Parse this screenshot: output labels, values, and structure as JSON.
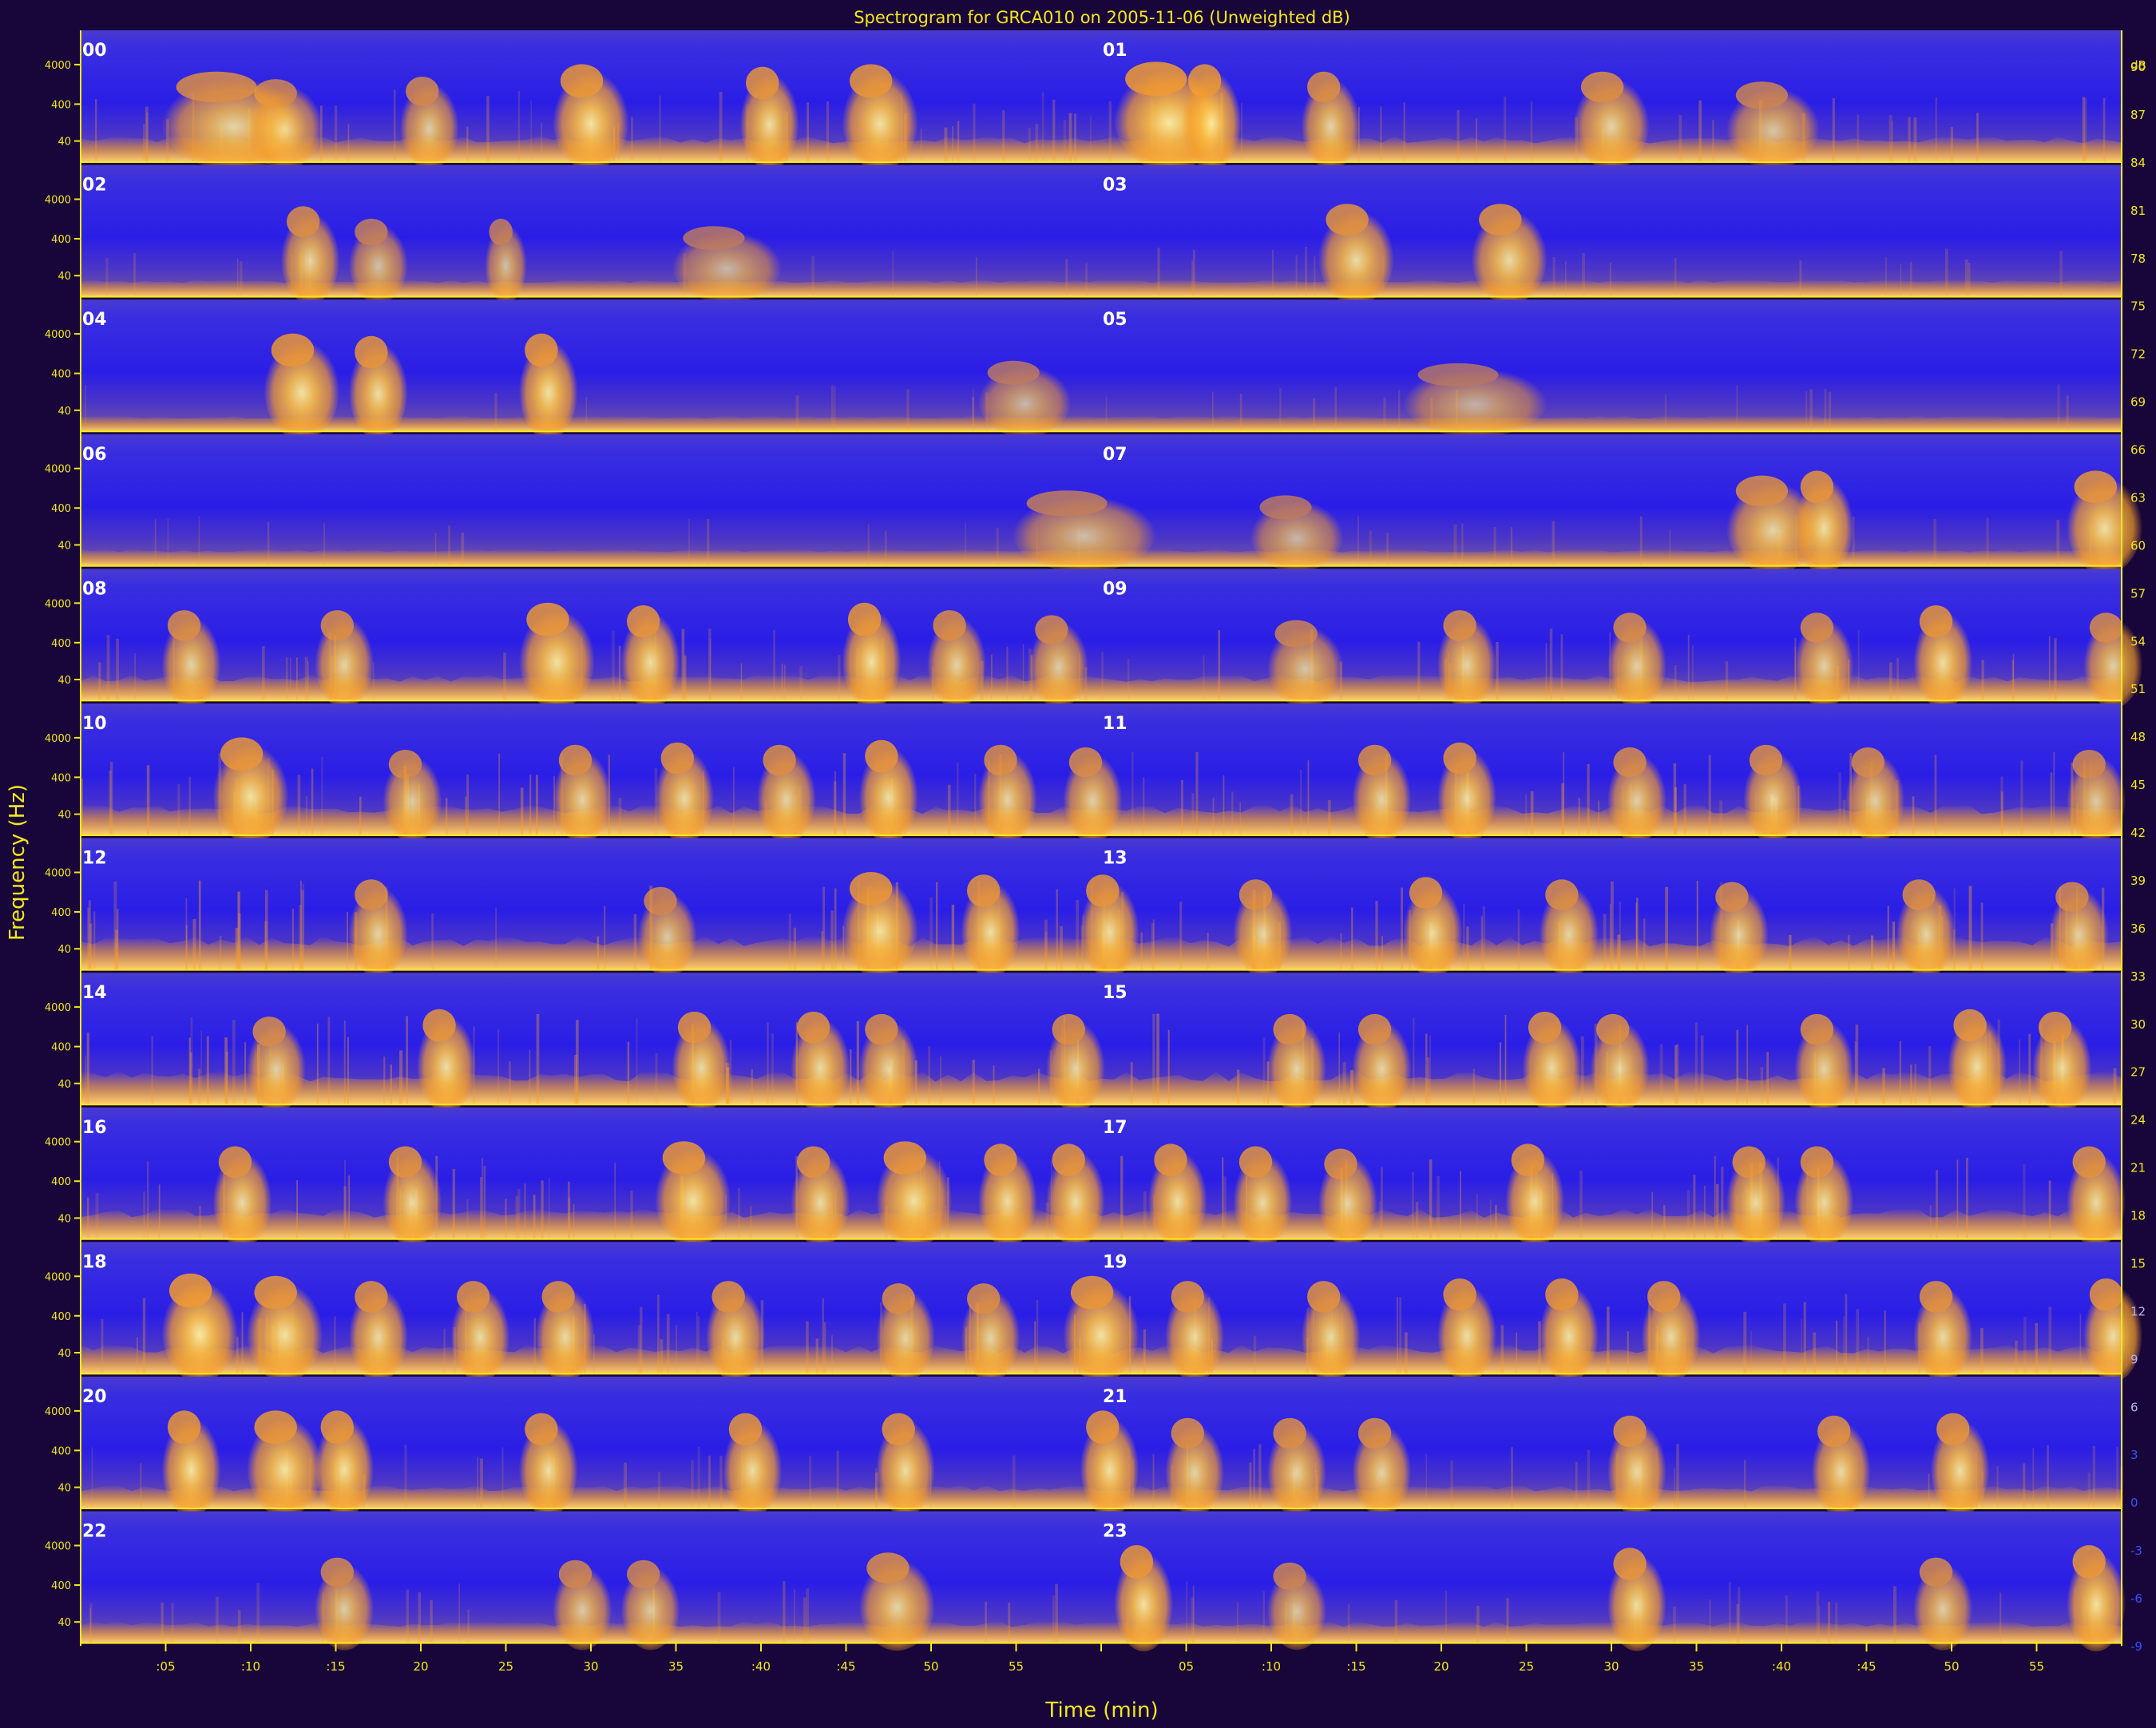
{
  "chart_data": {
    "type": "heatmap",
    "title": "Spectrogram for GRCA010 on 2005-11-06 (Unweighted dB)",
    "xlabel": "Time (min)",
    "ylabel": "Frequency (Hz)",
    "colorbar_unit": "dB",
    "rows": [
      {
        "left": "00",
        "right": "01",
        "mid_activity": 0.55,
        "bursts": [
          [
            5,
            8,
            0.7
          ],
          [
            10,
            4,
            0.55
          ],
          [
            19,
            3,
            0.6
          ],
          [
            28,
            4,
            0.85
          ],
          [
            39,
            3,
            0.8
          ],
          [
            45,
            4,
            0.85
          ],
          [
            61,
            6,
            0.9
          ],
          [
            65,
            3,
            0.85
          ],
          [
            72,
            3,
            0.7
          ],
          [
            88,
            4,
            0.7
          ],
          [
            97,
            5,
            0.5
          ]
        ]
      },
      {
        "left": "02",
        "right": "03",
        "mid_activity": 0.25,
        "bursts": [
          [
            12,
            3,
            0.7
          ],
          [
            16,
            3,
            0.45
          ],
          [
            24,
            2,
            0.45
          ],
          [
            35,
            6,
            0.3
          ],
          [
            73,
            4,
            0.75
          ],
          [
            82,
            4,
            0.75
          ]
        ]
      },
      {
        "left": "04",
        "right": "05",
        "mid_activity": 0.2,
        "bursts": [
          [
            11,
            4,
            0.85
          ],
          [
            16,
            3,
            0.8
          ],
          [
            26,
            3,
            0.85
          ],
          [
            53,
            5,
            0.3
          ],
          [
            78,
            8,
            0.25
          ]
        ]
      },
      {
        "left": "06",
        "right": "07",
        "mid_activity": 0.25,
        "bursts": [
          [
            55,
            8,
            0.4
          ],
          [
            69,
            5,
            0.3
          ],
          [
            97,
            5,
            0.7
          ],
          [
            101,
            3,
            0.8
          ],
          [
            117,
            4,
            0.8
          ]
        ]
      },
      {
        "left": "08",
        "right": "09",
        "mid_activity": 0.55,
        "bursts": [
          [
            5,
            3,
            0.7
          ],
          [
            14,
            3,
            0.7
          ],
          [
            26,
            4,
            0.85
          ],
          [
            32,
            3,
            0.8
          ],
          [
            45,
            3,
            0.85
          ],
          [
            50,
            3,
            0.7
          ],
          [
            56,
            3,
            0.6
          ],
          [
            70,
            4,
            0.5
          ],
          [
            80,
            3,
            0.7
          ],
          [
            90,
            3,
            0.65
          ],
          [
            101,
            3,
            0.65
          ],
          [
            108,
            3,
            0.8
          ],
          [
            118,
            3,
            0.65
          ]
        ]
      },
      {
        "left": "10",
        "right": "11",
        "mid_activity": 0.7,
        "bursts": [
          [
            8,
            4,
            0.85
          ],
          [
            18,
            3,
            0.6
          ],
          [
            28,
            3,
            0.7
          ],
          [
            34,
            3,
            0.75
          ],
          [
            40,
            3,
            0.7
          ],
          [
            46,
            3,
            0.8
          ],
          [
            53,
            3,
            0.7
          ],
          [
            58,
            3,
            0.65
          ],
          [
            75,
            3,
            0.7
          ],
          [
            80,
            3,
            0.75
          ],
          [
            90,
            3,
            0.65
          ],
          [
            98,
            3,
            0.7
          ],
          [
            104,
            3,
            0.65
          ],
          [
            117,
            3,
            0.6
          ]
        ]
      },
      {
        "left": "12",
        "right": "13",
        "mid_activity": 0.8,
        "bursts": [
          [
            16,
            3,
            0.7
          ],
          [
            33,
            3,
            0.55
          ],
          [
            45,
            4,
            0.85
          ],
          [
            52,
            3,
            0.8
          ],
          [
            59,
            3,
            0.8
          ],
          [
            68,
            3,
            0.7
          ],
          [
            78,
            3,
            0.75
          ],
          [
            86,
            3,
            0.7
          ],
          [
            96,
            3,
            0.65
          ],
          [
            107,
            3,
            0.7
          ],
          [
            116,
            3,
            0.65
          ]
        ]
      },
      {
        "left": "14",
        "right": "15",
        "mid_activity": 0.8,
        "bursts": [
          [
            10,
            3,
            0.65
          ],
          [
            20,
            3,
            0.8
          ],
          [
            35,
            3,
            0.75
          ],
          [
            42,
            3,
            0.75
          ],
          [
            46,
            3,
            0.7
          ],
          [
            57,
            3,
            0.7
          ],
          [
            70,
            3,
            0.7
          ],
          [
            75,
            3,
            0.7
          ],
          [
            85,
            3,
            0.75
          ],
          [
            89,
            3,
            0.7
          ],
          [
            101,
            3,
            0.7
          ],
          [
            110,
            3,
            0.8
          ],
          [
            115,
            3,
            0.75
          ]
        ]
      },
      {
        "left": "16",
        "right": "17",
        "mid_activity": 0.7,
        "bursts": [
          [
            8,
            3,
            0.75
          ],
          [
            18,
            3,
            0.75
          ],
          [
            34,
            4,
            0.85
          ],
          [
            42,
            3,
            0.75
          ],
          [
            47,
            4,
            0.85
          ],
          [
            53,
            3,
            0.8
          ],
          [
            57,
            3,
            0.8
          ],
          [
            63,
            3,
            0.8
          ],
          [
            68,
            3,
            0.75
          ],
          [
            73,
            3,
            0.7
          ],
          [
            84,
            3,
            0.8
          ],
          [
            97,
            3,
            0.75
          ],
          [
            101,
            3,
            0.75
          ],
          [
            117,
            3,
            0.75
          ]
        ]
      },
      {
        "left": "18",
        "right": "19",
        "mid_activity": 0.65,
        "bursts": [
          [
            5,
            4,
            0.9
          ],
          [
            10,
            4,
            0.85
          ],
          [
            16,
            3,
            0.75
          ],
          [
            22,
            3,
            0.75
          ],
          [
            27,
            3,
            0.75
          ],
          [
            37,
            3,
            0.75
          ],
          [
            47,
            3,
            0.7
          ],
          [
            52,
            3,
            0.7
          ],
          [
            58,
            4,
            0.85
          ],
          [
            64,
            3,
            0.75
          ],
          [
            72,
            3,
            0.75
          ],
          [
            80,
            3,
            0.8
          ],
          [
            86,
            3,
            0.8
          ],
          [
            92,
            3,
            0.75
          ],
          [
            108,
            3,
            0.75
          ],
          [
            118,
            3,
            0.8
          ]
        ]
      },
      {
        "left": "20",
        "right": "21",
        "mid_activity": 0.45,
        "bursts": [
          [
            5,
            3,
            0.85
          ],
          [
            10,
            4,
            0.85
          ],
          [
            14,
            3,
            0.85
          ],
          [
            26,
            3,
            0.8
          ],
          [
            38,
            3,
            0.8
          ],
          [
            47,
            3,
            0.8
          ],
          [
            59,
            3,
            0.85
          ],
          [
            64,
            3,
            0.7
          ],
          [
            70,
            3,
            0.7
          ],
          [
            75,
            3,
            0.7
          ],
          [
            90,
            3,
            0.75
          ],
          [
            102,
            3,
            0.75
          ],
          [
            109,
            3,
            0.8
          ]
        ]
      },
      {
        "left": "22",
        "right": "23",
        "mid_activity": 0.4,
        "bursts": [
          [
            14,
            3,
            0.6
          ],
          [
            28,
            3,
            0.55
          ],
          [
            32,
            3,
            0.55
          ],
          [
            46,
            4,
            0.7
          ],
          [
            61,
            3,
            0.85
          ],
          [
            70,
            3,
            0.5
          ],
          [
            90,
            3,
            0.8
          ],
          [
            108,
            3,
            0.6
          ],
          [
            117,
            3,
            0.85
          ]
        ]
      }
    ],
    "y_ticks": [
      "4000",
      "400",
      "40"
    ],
    "x_ticks": [
      ":05",
      ":10",
      ":15",
      "20",
      "25",
      "30",
      "35",
      ":40",
      ":45",
      "50",
      "55",
      "",
      "05",
      ":10",
      ":15",
      "20",
      "25",
      "30",
      "35",
      ":40",
      ":45",
      "50",
      "55"
    ],
    "colorbar_ticks": [
      "dB",
      "90",
      "87",
      "84",
      "81",
      "78",
      "75",
      "72",
      "69",
      "66",
      "63",
      "60",
      "57",
      "54",
      "51",
      "48",
      "45",
      "42",
      "39",
      "36",
      "33",
      "30",
      "27",
      "24",
      "21",
      "18",
      "15",
      "12",
      "9",
      "6",
      "3",
      "0",
      "-3",
      "-6",
      "-9"
    ],
    "colors": {
      "background": "#18063a",
      "low": "#2a1ee6",
      "mid": "#5e48c8",
      "high": "#f8a02a",
      "peak": "#fff0a0",
      "text": "#f4e81c",
      "label": "#ffffff"
    }
  }
}
